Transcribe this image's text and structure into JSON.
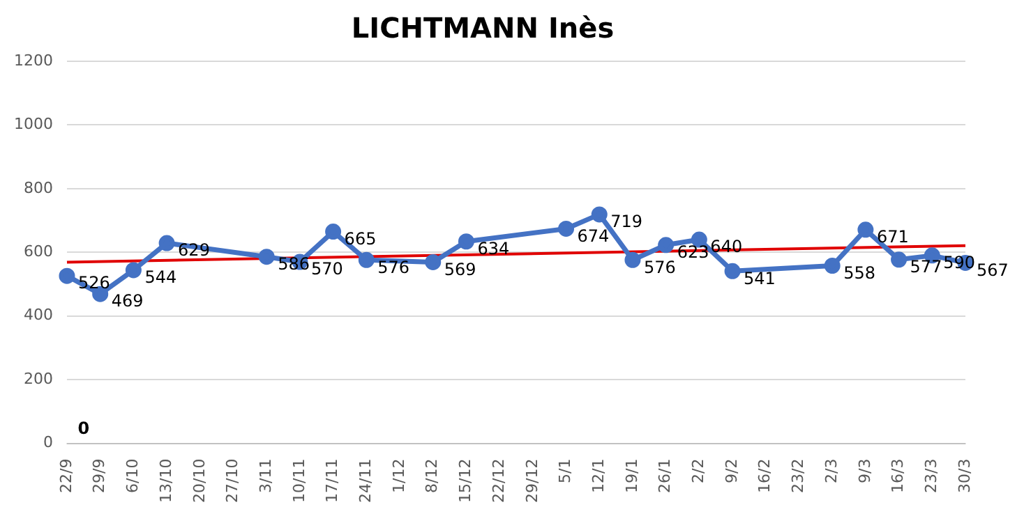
{
  "chart_data": {
    "type": "line",
    "title": "LICHTMANN Inès",
    "categories": [
      "22/9",
      "29/9",
      "6/10",
      "13/10",
      "20/10",
      "27/10",
      "3/11",
      "10/11",
      "17/11",
      "24/11",
      "1/12",
      "8/12",
      "15/12",
      "22/12",
      "29/12",
      "5/1",
      "12/1",
      "19/1",
      "26/1",
      "2/2",
      "9/2",
      "16/2",
      "23/2",
      "2/3",
      "9/3",
      "16/3",
      "23/3",
      "30/3"
    ],
    "series": [
      {
        "color": "#4472c4",
        "values": [
          526,
          469,
          544,
          629,
          null,
          null,
          586,
          570,
          665,
          576,
          null,
          569,
          634,
          null,
          null,
          674,
          719,
          576,
          623,
          640,
          541,
          null,
          null,
          558,
          671,
          577,
          590,
          567
        ],
        "marker": "circle",
        "data_labels": true
      },
      {
        "type": "line",
        "color": "#e00000",
        "values": [
          569,
          null,
          null,
          null,
          null,
          null,
          null,
          null,
          null,
          null,
          null,
          null,
          null,
          null,
          null,
          null,
          null,
          null,
          null,
          null,
          null,
          null,
          null,
          null,
          null,
          null,
          null,
          621
        ],
        "marker": "none"
      }
    ],
    "ylim": [
      0,
      1200
    ],
    "yticks": [
      0,
      200,
      400,
      600,
      800,
      1000,
      1200
    ],
    "grid": "y",
    "legend": false,
    "annotations": [
      "0"
    ]
  }
}
